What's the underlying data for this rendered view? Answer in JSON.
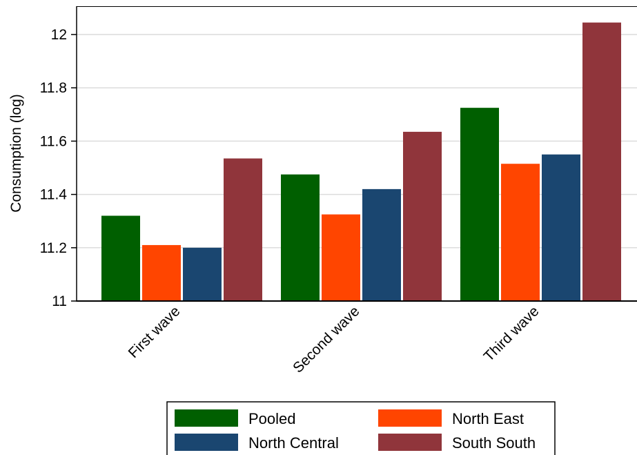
{
  "chart_data": {
    "type": "bar",
    "ylabel": "Consumption (log)",
    "xlabel": "",
    "ylim": [
      11,
      12.1
    ],
    "yticks": [
      11,
      11.2,
      11.4,
      11.6,
      11.8,
      12
    ],
    "ytick_labels": [
      "11",
      "11.2",
      "11.4",
      "11.6",
      "11.8",
      "12"
    ],
    "grid": true,
    "categories": [
      "First wave",
      "Second wave",
      "Third wave"
    ],
    "series": [
      {
        "name": "Pooled",
        "color": "#005f00",
        "values": [
          11.32,
          11.475,
          11.725
        ]
      },
      {
        "name": "North East",
        "color": "#ff4500",
        "values": [
          11.21,
          11.325,
          11.515
        ]
      },
      {
        "name": "North Central",
        "color": "#1a4670",
        "values": [
          11.2,
          11.42,
          11.55
        ]
      },
      {
        "name": "South South",
        "color": "#90353b",
        "values": [
          11.535,
          11.635,
          12.045
        ]
      }
    ],
    "legend_placement": "bottom"
  }
}
